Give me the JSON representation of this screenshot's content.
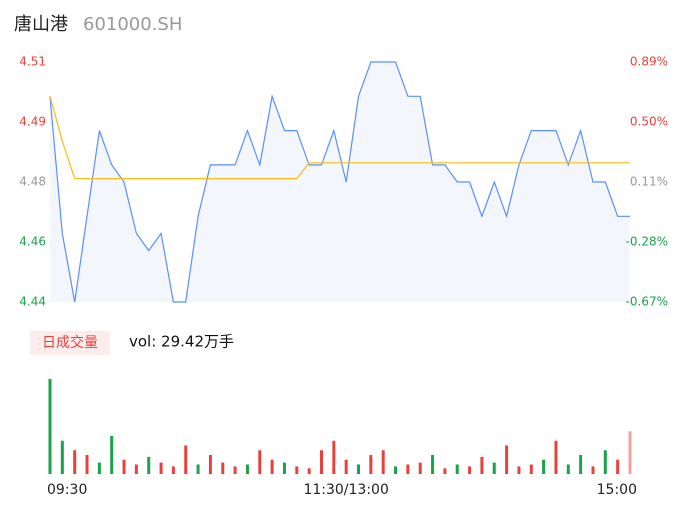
{
  "chart_data": {
    "type": "intraday",
    "title": "唐山港",
    "subtitle": "601000.SH",
    "categories": [
      "09:30",
      null,
      null,
      null,
      null,
      null,
      null,
      null,
      null,
      null,
      null,
      null,
      null,
      null,
      null,
      null,
      null,
      null,
      null,
      null,
      null,
      null,
      null,
      null,
      "11:30/13:00",
      null,
      null,
      null,
      null,
      null,
      null,
      null,
      null,
      null,
      null,
      null,
      null,
      null,
      null,
      null,
      null,
      null,
      null,
      null,
      null,
      null,
      null,
      "15:00"
    ],
    "series": [
      {
        "color": "#5b8ff9",
        "axis": "y",
        "values": [
          4.5,
          4.46,
          4.44,
          4.465,
          4.49,
          4.48,
          4.475,
          4.46,
          4.455,
          4.46,
          4.44,
          4.44,
          4.465,
          4.48,
          4.48,
          4.48,
          4.49,
          4.48,
          4.5,
          4.49,
          4.49,
          4.48,
          4.48,
          4.49,
          4.475,
          4.5,
          4.51,
          4.51,
          4.51,
          4.5,
          4.5,
          4.48,
          4.48,
          4.475,
          4.475,
          4.465,
          4.475,
          4.465,
          4.48,
          4.49,
          4.49,
          4.49,
          4.48,
          4.49,
          4.475,
          4.475,
          4.465,
          4.465
        ]
      },
      {
        "color": "#f6bd16",
        "axis": "y",
        "values": [
          4.5,
          4.487,
          4.476,
          4.476,
          4.476,
          4.476,
          4.476,
          4.476,
          4.476,
          4.476,
          4.476,
          4.476,
          4.476,
          4.476,
          4.476,
          4.476,
          4.476,
          4.476,
          4.476,
          4.476,
          4.476,
          4.4806,
          4.4806,
          4.4806,
          4.4806,
          4.4806,
          4.4806,
          4.4806,
          4.4806,
          4.4806,
          4.4806,
          4.4806,
          4.4806,
          4.4806,
          4.4806,
          4.4806,
          4.4806,
          4.4806,
          4.4806,
          4.4806,
          4.4806,
          4.4806,
          4.4806,
          4.4806,
          4.4806,
          4.4806,
          4.4806,
          4.4806
        ]
      }
    ],
    "area_color": "#f3f6fd",
    "ylim": [
      4.44,
      4.51
    ],
    "yticks": [
      {
        "value": 4.51,
        "label": "4.51"
      },
      {
        "value": 4.4925,
        "label": "4.49"
      },
      {
        "value": 4.475,
        "label": "4.48"
      },
      {
        "value": 4.4575,
        "label": "4.46"
      },
      {
        "value": 4.44,
        "label": "4.44"
      }
    ],
    "y2lim": [
      -0.67,
      0.89
    ],
    "y2ticks": [
      {
        "value": 0.89,
        "label": "0.89%"
      },
      {
        "value": 0.5,
        "label": "0.50%"
      },
      {
        "value": 0.11,
        "label": "0.11%"
      },
      {
        "value": -0.28,
        "label": "-0.28%"
      },
      {
        "value": -0.67,
        "label": "-0.67%"
      }
    ],
    "tick_colors": [
      "#e8413b",
      "#e8413b",
      "#999999",
      "#1aa34a",
      "#1aa34a"
    ],
    "volume_badge": "日成交量",
    "volume_label": "vol: 29.42万手",
    "volume_lim": [
      0,
      100
    ],
    "volumes": [
      100,
      35,
      25,
      20,
      12,
      40,
      15,
      10,
      18,
      12,
      8,
      30,
      10,
      20,
      12,
      8,
      10,
      25,
      15,
      12,
      8,
      6,
      25,
      35,
      15,
      10,
      20,
      25,
      8,
      10,
      12,
      20,
      6,
      10,
      8,
      18,
      12,
      30,
      8,
      10,
      15,
      35,
      10,
      20,
      8,
      25,
      15,
      45
    ],
    "volume_colors": [
      "#1aa34a",
      "#1aa34a",
      "#e8413b",
      "#e8413b",
      "#1aa34a",
      "#1aa34a",
      "#e8413b",
      "#e8413b",
      "#1aa34a",
      "#e8413b",
      "#e8413b",
      "#e8413b",
      "#1aa34a",
      "#e8413b",
      "#e8413b",
      "#e8413b",
      "#1aa34a",
      "#e8413b",
      "#e8413b",
      "#1aa34a",
      "#e8413b",
      "#e8413b",
      "#e8413b",
      "#e8413b",
      "#e8413b",
      "#1aa34a",
      "#e8413b",
      "#e8413b",
      "#1aa34a",
      "#e8413b",
      "#e8413b",
      "#1aa34a",
      "#e8413b",
      "#1aa34a",
      "#e8413b",
      "#e8413b",
      "#1aa34a",
      "#e8413b",
      "#e8413b",
      "#e8413b",
      "#1aa34a",
      "#e8413b",
      "#1aa34a",
      "#1aa34a",
      "#e8413b",
      "#1aa34a",
      "#e8413b",
      "#f4a0a0"
    ]
  }
}
